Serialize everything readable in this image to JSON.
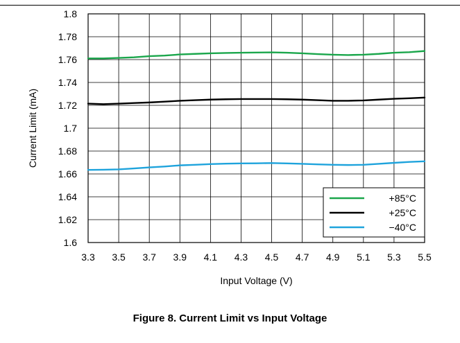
{
  "caption": "Figure 8. Current Limit vs Input Voltage",
  "chart_data": {
    "type": "line",
    "xlabel": "Input Voltage (V)",
    "ylabel": "Current Limit (mA)",
    "xlim": [
      3.3,
      5.5
    ],
    "ylim": [
      1.6,
      1.8
    ],
    "x_ticks": [
      "3.3",
      "3.5",
      "3.7",
      "3.9",
      "4.1",
      "4.3",
      "4.5",
      "4.7",
      "4.9",
      "5.1",
      "5.3",
      "5.5"
    ],
    "y_ticks": [
      "1.6",
      "1.62",
      "1.64",
      "1.66",
      "1.68",
      "1.7",
      "1.72",
      "1.74",
      "1.76",
      "1.78",
      "1.8"
    ],
    "grid": true,
    "legend_position": "bottom-right",
    "x": [
      3.3,
      3.4,
      3.5,
      3.6,
      3.7,
      3.8,
      3.9,
      4.0,
      4.1,
      4.2,
      4.3,
      4.4,
      4.5,
      4.6,
      4.7,
      4.8,
      4.9,
      5.0,
      5.1,
      5.2,
      5.3,
      5.4,
      5.5
    ],
    "series": [
      {
        "name": "+85°C",
        "color": "#1aa64b",
        "values": [
          1.761,
          1.761,
          1.7615,
          1.762,
          1.763,
          1.7635,
          1.7645,
          1.765,
          1.7655,
          1.7658,
          1.766,
          1.7662,
          1.7663,
          1.766,
          1.7655,
          1.7648,
          1.7643,
          1.764,
          1.7643,
          1.765,
          1.766,
          1.7665,
          1.7675
        ]
      },
      {
        "name": "+25°C",
        "color": "#000000",
        "values": [
          1.7215,
          1.721,
          1.7215,
          1.722,
          1.7225,
          1.7232,
          1.724,
          1.7245,
          1.725,
          1.7253,
          1.7255,
          1.7255,
          1.7255,
          1.7253,
          1.725,
          1.7245,
          1.724,
          1.724,
          1.7243,
          1.725,
          1.7257,
          1.7262,
          1.7268
        ]
      },
      {
        "name": "−40°C",
        "color": "#1ea3dc",
        "values": [
          1.6635,
          1.6637,
          1.664,
          1.6648,
          1.6657,
          1.6665,
          1.6675,
          1.668,
          1.6686,
          1.669,
          1.6692,
          1.6693,
          1.6695,
          1.6692,
          1.6688,
          1.6684,
          1.668,
          1.6678,
          1.668,
          1.6688,
          1.6697,
          1.6705,
          1.671
        ]
      }
    ]
  }
}
